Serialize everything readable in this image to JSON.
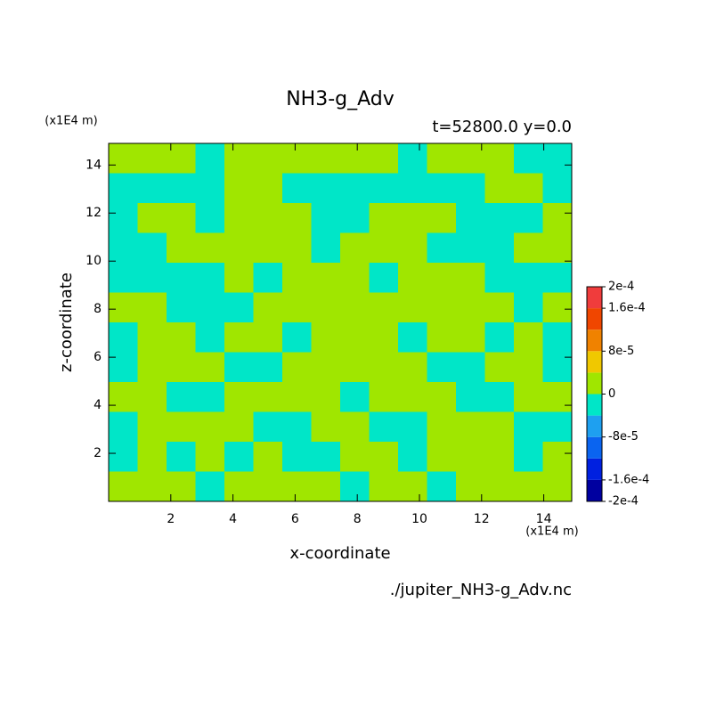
{
  "chart_data": {
    "type": "contour",
    "title": "NH3-g_Adv",
    "subtitle": "t=52800.0 y=0.0",
    "x_label": "x-coordinate",
    "y_label": "z-coordinate",
    "x_unit": "(x1E4 m)",
    "y_unit": "(x1E4 m)",
    "source": "./jupiter_NH3-g_Adv.nc",
    "xlim": [
      0,
      14.9
    ],
    "ylim": [
      0,
      14.9
    ],
    "xticks": [
      2,
      4,
      6,
      8,
      10,
      12,
      14
    ],
    "yticks": [
      2,
      4,
      6,
      8,
      10,
      12,
      14
    ],
    "levels": [
      -0.0002,
      -0.00016,
      -0.00012,
      -8e-05,
      -4e-05,
      0,
      4e-05,
      8e-05,
      0.00012,
      0.00016,
      0.0002
    ],
    "colors": [
      "#0000a0",
      "#0020e0",
      "#0a64f0",
      "#1ea0f0",
      "#00e6c8",
      "#a0e600",
      "#f0c800",
      "#f08200",
      "#f04600",
      "#f03c3c"
    ],
    "colorbar_ticks": [
      {
        "value": 0.0002,
        "label": "2e-4"
      },
      {
        "value": 0.00016,
        "label": "1.6e-4"
      },
      {
        "value": 8e-05,
        "label": "8e-5"
      },
      0,
      {
        "value": -8e-05,
        "label": "-8e-5"
      },
      {
        "value": -0.00016,
        "label": "-1.6e-4"
      },
      {
        "value": -0.0002,
        "label": "-2e-4"
      }
    ],
    "z": [
      [
        2e-05,
        2e-05,
        2e-05,
        -2e-05,
        2e-05,
        2e-05,
        2e-05,
        2e-05,
        2e-05,
        2e-05,
        -2e-05,
        2e-05,
        2e-05,
        2e-05,
        -2e-05,
        -2e-05
      ],
      [
        -2e-05,
        -2e-05,
        -2e-05,
        -2e-05,
        2e-05,
        2e-05,
        -2e-05,
        -2e-05,
        -2e-05,
        -2e-05,
        -2e-05,
        -2e-05,
        -2e-05,
        2e-05,
        2e-05,
        -2e-05
      ],
      [
        -2e-05,
        2e-05,
        2e-05,
        -2e-05,
        2e-05,
        2e-05,
        2e-05,
        -2e-05,
        -2e-05,
        2e-05,
        2e-05,
        2e-05,
        -2e-05,
        -2e-05,
        -2e-05,
        2e-05
      ],
      [
        -2e-05,
        -2e-05,
        2e-05,
        2e-05,
        2e-05,
        2e-05,
        2e-05,
        -2e-05,
        2e-05,
        2e-05,
        2e-05,
        -2e-05,
        -2e-05,
        -2e-05,
        2e-05,
        2e-05
      ],
      [
        -2e-05,
        -2e-05,
        -2e-05,
        -2e-05,
        2e-05,
        -2e-05,
        2e-05,
        2e-05,
        2e-05,
        -2e-05,
        2e-05,
        2e-05,
        2e-05,
        -2e-05,
        -2e-05,
        -2e-05
      ],
      [
        2e-05,
        2e-05,
        -2e-05,
        -2e-05,
        -2e-05,
        2e-05,
        2e-05,
        2e-05,
        2e-05,
        2e-05,
        2e-05,
        2e-05,
        2e-05,
        2e-05,
        -2e-05,
        2e-05
      ],
      [
        -2e-05,
        2e-05,
        2e-05,
        -2e-05,
        2e-05,
        2e-05,
        -2e-05,
        2e-05,
        2e-05,
        2e-05,
        -2e-05,
        2e-05,
        2e-05,
        -2e-05,
        2e-05,
        -2e-05
      ],
      [
        -2e-05,
        2e-05,
        2e-05,
        2e-05,
        -2e-05,
        -2e-05,
        2e-05,
        2e-05,
        2e-05,
        2e-05,
        2e-05,
        -2e-05,
        -2e-05,
        2e-05,
        2e-05,
        -2e-05
      ],
      [
        2e-05,
        2e-05,
        -2e-05,
        -2e-05,
        2e-05,
        2e-05,
        2e-05,
        2e-05,
        -2e-05,
        2e-05,
        2e-05,
        2e-05,
        -2e-05,
        -2e-05,
        2e-05,
        2e-05
      ],
      [
        -2e-05,
        2e-05,
        2e-05,
        2e-05,
        2e-05,
        -2e-05,
        -2e-05,
        2e-05,
        2e-05,
        -2e-05,
        -2e-05,
        2e-05,
        2e-05,
        2e-05,
        -2e-05,
        -2e-05
      ],
      [
        -2e-05,
        2e-05,
        -2e-05,
        2e-05,
        -2e-05,
        2e-05,
        -2e-05,
        -2e-05,
        2e-05,
        2e-05,
        -2e-05,
        2e-05,
        2e-05,
        2e-05,
        -2e-05,
        2e-05
      ],
      [
        2e-05,
        2e-05,
        2e-05,
        -2e-05,
        2e-05,
        2e-05,
        2e-05,
        2e-05,
        -2e-05,
        2e-05,
        2e-05,
        -2e-05,
        2e-05,
        2e-05,
        2e-05,
        2e-05
      ]
    ]
  }
}
